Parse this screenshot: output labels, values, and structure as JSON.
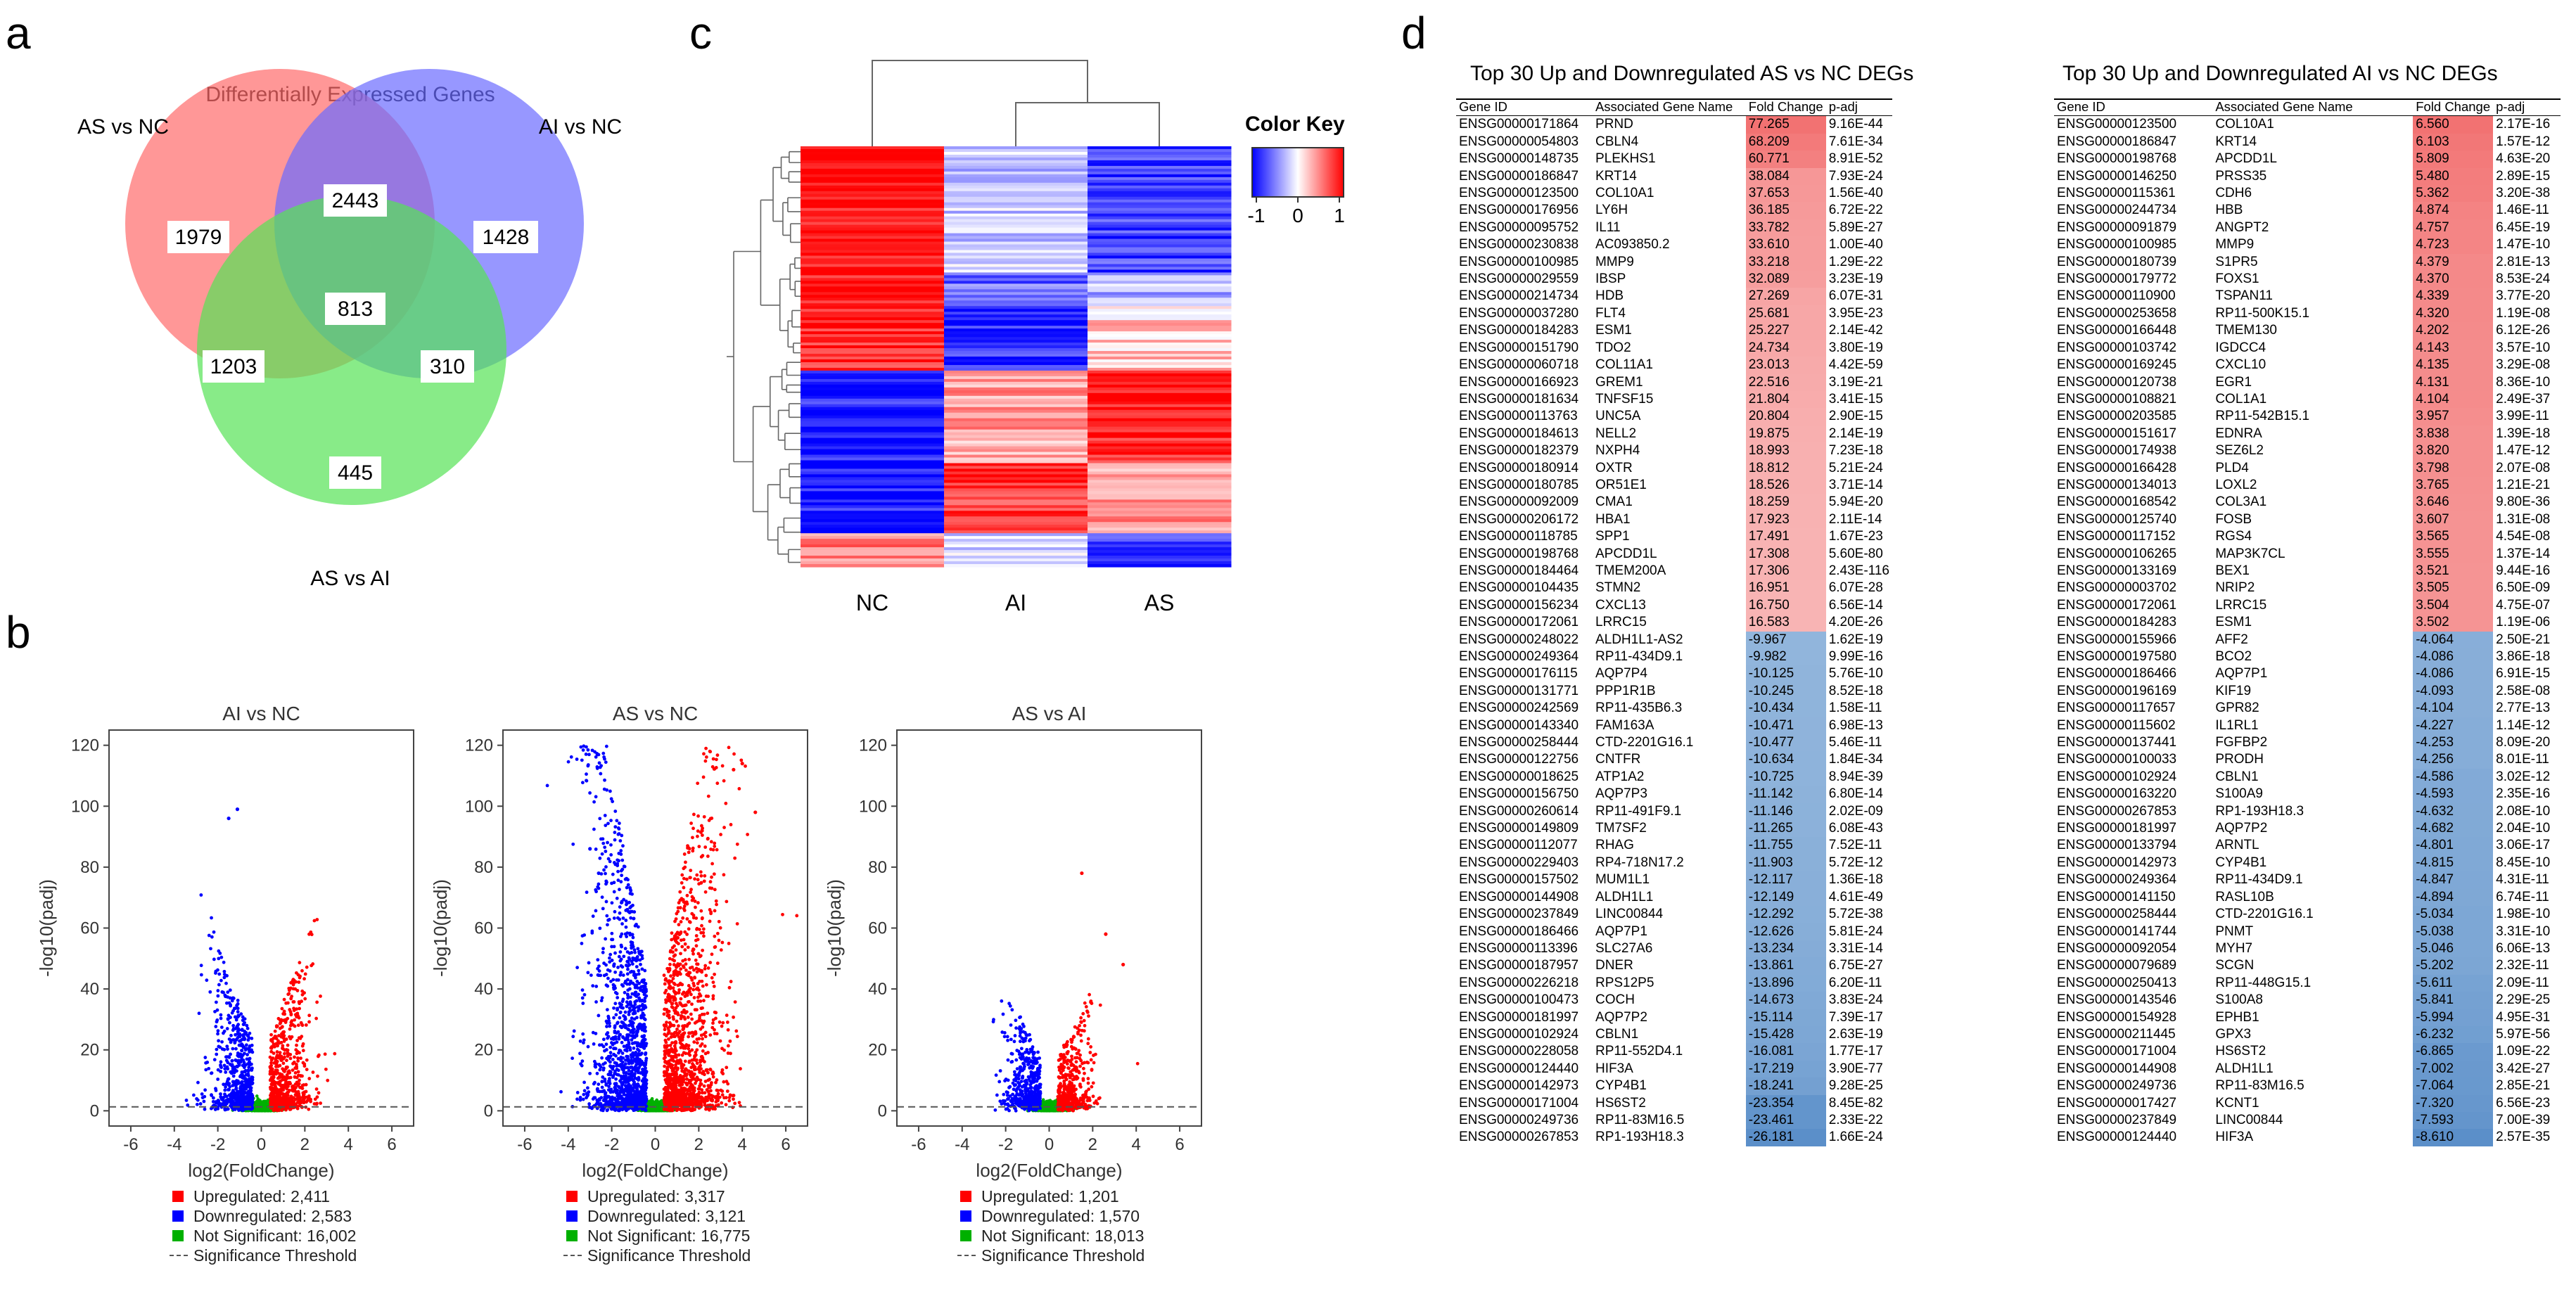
{
  "panels": {
    "a": "a",
    "b": "b",
    "c": "c",
    "d": "d"
  },
  "venn": {
    "title": "Differentially Expressed Genes",
    "sets": [
      {
        "label": "AS vs NC",
        "color": "#ff6b6b"
      },
      {
        "label": "AI vs NC",
        "color": "#6b6bff"
      },
      {
        "label": "AS vs AI",
        "color": "#55e255"
      }
    ],
    "regions": {
      "as_only": "1979",
      "ai_only": "1428",
      "asai_only": "445",
      "as_ai": "2443",
      "as_asai": "1203",
      "ai_asai": "310",
      "all": "813"
    }
  },
  "volcano": {
    "ylabel": "-log10(padj)",
    "xlabel": "log2(FoldChange)",
    "xticks": [
      "-6",
      "-4",
      "-2",
      "0",
      "2",
      "4",
      "6"
    ],
    "yticks": [
      "0",
      "20",
      "40",
      "60",
      "80",
      "100",
      "120"
    ],
    "xlim": [
      -7,
      7
    ],
    "ylim": [
      -5,
      125
    ],
    "colors": {
      "up": "#ff0000",
      "down": "#0000ff",
      "ns": "#00b000"
    },
    "plots": [
      {
        "title": "AI vs NC",
        "legend": [
          "Upregulated: 2,411",
          "Downregulated: 2,583",
          "Not Significant: 16,002",
          "Significance Threshold"
        ]
      },
      {
        "title": "AS vs NC",
        "legend": [
          "Upregulated: 3,317",
          "Downregulated: 3,121",
          "Not Significant: 16,775",
          "Significance Threshold"
        ]
      },
      {
        "title": "AS vs AI",
        "legend": [
          "Upregulated: 1,201",
          "Downregulated: 1,570",
          "Not Significant: 18,013",
          "Significance Threshold"
        ]
      }
    ]
  },
  "heatmap": {
    "columns": [
      "NC",
      "AI",
      "AS"
    ],
    "color_key_title": "Color Key",
    "color_key_ticks": [
      "-1",
      "0",
      "1"
    ],
    "colors": {
      "low": "#0000ff",
      "mid": "#ffffff",
      "high": "#ff0000"
    }
  },
  "tables": [
    {
      "title": "Top 30 Up and Downregulated AS vs NC DEGs",
      "headers": [
        "Gene ID",
        "Associated Gene Name",
        "Fold Change",
        "p-adj"
      ],
      "rows": [
        [
          "ENSG00000171864",
          "PRND",
          "77.265",
          "9.16E-44"
        ],
        [
          "ENSG00000054803",
          "CBLN4",
          "68.209",
          "7.61E-34"
        ],
        [
          "ENSG00000148735",
          "PLEKHS1",
          "60.771",
          "8.91E-52"
        ],
        [
          "ENSG00000186847",
          "KRT14",
          "38.084",
          "7.93E-24"
        ],
        [
          "ENSG00000123500",
          "COL10A1",
          "37.653",
          "1.56E-40"
        ],
        [
          "ENSG00000176956",
          "LY6H",
          "36.185",
          "6.72E-22"
        ],
        [
          "ENSG00000095752",
          "IL11",
          "33.782",
          "5.89E-27"
        ],
        [
          "ENSG00000230838",
          "AC093850.2",
          "33.610",
          "1.00E-40"
        ],
        [
          "ENSG00000100985",
          "MMP9",
          "33.218",
          "1.29E-22"
        ],
        [
          "ENSG00000029559",
          "IBSP",
          "32.089",
          "3.23E-19"
        ],
        [
          "ENSG00000214734",
          "HDB",
          "27.269",
          "6.07E-31"
        ],
        [
          "ENSG00000037280",
          "FLT4",
          "25.681",
          "3.95E-23"
        ],
        [
          "ENSG00000184283",
          "ESM1",
          "25.227",
          "2.14E-42"
        ],
        [
          "ENSG00000151790",
          "TDO2",
          "24.734",
          "3.80E-19"
        ],
        [
          "ENSG00000060718",
          "COL11A1",
          "23.013",
          "4.42E-59"
        ],
        [
          "ENSG00000166923",
          "GREM1",
          "22.516",
          "3.19E-21"
        ],
        [
          "ENSG00000181634",
          "TNFSF15",
          "21.804",
          "3.41E-15"
        ],
        [
          "ENSG00000113763",
          "UNC5A",
          "20.804",
          "2.90E-15"
        ],
        [
          "ENSG00000184613",
          "NELL2",
          "19.875",
          "2.14E-19"
        ],
        [
          "ENSG00000182379",
          "NXPH4",
          "18.993",
          "7.23E-18"
        ],
        [
          "ENSG00000180914",
          "OXTR",
          "18.812",
          "5.21E-24"
        ],
        [
          "ENSG00000180785",
          "OR51E1",
          "18.526",
          "3.71E-14"
        ],
        [
          "ENSG00000092009",
          "CMA1",
          "18.259",
          "5.94E-20"
        ],
        [
          "ENSG00000206172",
          "HBA1",
          "17.923",
          "2.11E-14"
        ],
        [
          "ENSG00000118785",
          "SPP1",
          "17.491",
          "1.67E-23"
        ],
        [
          "ENSG00000198768",
          "APCDD1L",
          "17.308",
          "5.60E-80"
        ],
        [
          "ENSG00000184464",
          "TMEM200A",
          "17.306",
          "2.43E-116"
        ],
        [
          "ENSG00000104435",
          "STMN2",
          "16.951",
          "6.07E-28"
        ],
        [
          "ENSG00000156234",
          "CXCL13",
          "16.750",
          "6.56E-14"
        ],
        [
          "ENSG00000172061",
          "LRRC15",
          "16.583",
          "4.20E-26"
        ],
        [
          "ENSG00000248022",
          "ALDH1L1-AS2",
          "-9.967",
          "1.62E-19"
        ],
        [
          "ENSG00000249364",
          "RP11-434D9.1",
          "-9.982",
          "9.99E-16"
        ],
        [
          "ENSG00000176115",
          "AQP7P4",
          "-10.125",
          "5.76E-10"
        ],
        [
          "ENSG00000131771",
          "PPP1R1B",
          "-10.245",
          "8.52E-18"
        ],
        [
          "ENSG00000242569",
          "RP11-435B6.3",
          "-10.434",
          "1.58E-11"
        ],
        [
          "ENSG00000143340",
          "FAM163A",
          "-10.471",
          "6.98E-13"
        ],
        [
          "ENSG00000258444",
          "CTD-2201G16.1",
          "-10.477",
          "5.46E-11"
        ],
        [
          "ENSG00000122756",
          "CNTFR",
          "-10.634",
          "1.84E-34"
        ],
        [
          "ENSG00000018625",
          "ATP1A2",
          "-10.725",
          "8.94E-39"
        ],
        [
          "ENSG00000156750",
          "AQP7P3",
          "-11.142",
          "6.80E-14"
        ],
        [
          "ENSG00000260614",
          "RP11-491F9.1",
          "-11.146",
          "2.02E-09"
        ],
        [
          "ENSG00000149809",
          "TM7SF2",
          "-11.265",
          "6.08E-43"
        ],
        [
          "ENSG00000112077",
          "RHAG",
          "-11.755",
          "7.52E-11"
        ],
        [
          "ENSG00000229403",
          "RP4-718N17.2",
          "-11.903",
          "5.72E-12"
        ],
        [
          "ENSG00000157502",
          "MUM1L1",
          "-12.117",
          "1.36E-18"
        ],
        [
          "ENSG00000144908",
          "ALDH1L1",
          "-12.149",
          "4.61E-49"
        ],
        [
          "ENSG00000237849",
          "LINC00844",
          "-12.292",
          "5.72E-38"
        ],
        [
          "ENSG00000186466",
          "AQP7P1",
          "-12.626",
          "5.81E-24"
        ],
        [
          "ENSG00000113396",
          "SLC27A6",
          "-13.234",
          "3.31E-14"
        ],
        [
          "ENSG00000187957",
          "DNER",
          "-13.861",
          "6.75E-27"
        ],
        [
          "ENSG00000226218",
          "RPS12P5",
          "-13.896",
          "6.20E-11"
        ],
        [
          "ENSG00000100473",
          "COCH",
          "-14.673",
          "3.83E-24"
        ],
        [
          "ENSG00000181997",
          "AQP7P2",
          "-15.114",
          "7.39E-17"
        ],
        [
          "ENSG00000102924",
          "CBLN1",
          "-15.428",
          "2.63E-19"
        ],
        [
          "ENSG00000228058",
          "RP11-552D4.1",
          "-16.081",
          "1.77E-17"
        ],
        [
          "ENSG00000124440",
          "HIF3A",
          "-17.219",
          "3.90E-77"
        ],
        [
          "ENSG00000142973",
          "CYP4B1",
          "-18.241",
          "9.28E-25"
        ],
        [
          "ENSG00000171004",
          "HS6ST2",
          "-23.354",
          "8.45E-82"
        ],
        [
          "ENSG00000249736",
          "RP11-83M16.5",
          "-23.461",
          "2.33E-22"
        ],
        [
          "ENSG00000267853",
          "RP1-193H18.3",
          "-26.181",
          "1.66E-24"
        ]
      ]
    },
    {
      "title": "Top 30 Up and Downregulated AI vs NC DEGs",
      "headers": [
        "Gene ID",
        "Associated Gene Name",
        "Fold Change",
        "p-adj"
      ],
      "rows": [
        [
          "ENSG00000123500",
          "COL10A1",
          "6.560",
          "2.17E-16"
        ],
        [
          "ENSG00000186847",
          "KRT14",
          "6.103",
          "1.57E-12"
        ],
        [
          "ENSG00000198768",
          "APCDD1L",
          "5.809",
          "4.63E-20"
        ],
        [
          "ENSG00000146250",
          "PRSS35",
          "5.480",
          "2.89E-15"
        ],
        [
          "ENSG00000115361",
          "CDH6",
          "5.362",
          "3.20E-38"
        ],
        [
          "ENSG00000244734",
          "HBB",
          "4.874",
          "1.46E-11"
        ],
        [
          "ENSG00000091879",
          "ANGPT2",
          "4.757",
          "6.45E-19"
        ],
        [
          "ENSG00000100985",
          "MMP9",
          "4.723",
          "1.47E-10"
        ],
        [
          "ENSG00000180739",
          "S1PR5",
          "4.379",
          "2.81E-13"
        ],
        [
          "ENSG00000179772",
          "FOXS1",
          "4.370",
          "8.53E-24"
        ],
        [
          "ENSG00000110900",
          "TSPAN11",
          "4.339",
          "3.77E-20"
        ],
        [
          "ENSG00000253658",
          "RP11-500K15.1",
          "4.320",
          "1.19E-08"
        ],
        [
          "ENSG00000166448",
          "TMEM130",
          "4.202",
          "6.12E-26"
        ],
        [
          "ENSG00000103742",
          "IGDCC4",
          "4.143",
          "3.57E-10"
        ],
        [
          "ENSG00000169245",
          "CXCL10",
          "4.135",
          "3.29E-08"
        ],
        [
          "ENSG00000120738",
          "EGR1",
          "4.131",
          "8.36E-10"
        ],
        [
          "ENSG00000108821",
          "COL1A1",
          "4.104",
          "2.49E-37"
        ],
        [
          "ENSG00000203585",
          "RP11-542B15.1",
          "3.957",
          "3.99E-11"
        ],
        [
          "ENSG00000151617",
          "EDNRA",
          "3.838",
          "1.39E-18"
        ],
        [
          "ENSG00000174938",
          "SEZ6L2",
          "3.820",
          "1.47E-12"
        ],
        [
          "ENSG00000166428",
          "PLD4",
          "3.798",
          "2.07E-08"
        ],
        [
          "ENSG00000134013",
          "LOXL2",
          "3.765",
          "1.21E-21"
        ],
        [
          "ENSG00000168542",
          "COL3A1",
          "3.646",
          "9.80E-36"
        ],
        [
          "ENSG00000125740",
          "FOSB",
          "3.607",
          "1.31E-08"
        ],
        [
          "ENSG00000117152",
          "RGS4",
          "3.565",
          "4.54E-08"
        ],
        [
          "ENSG00000106265",
          "MAP3K7CL",
          "3.555",
          "1.37E-14"
        ],
        [
          "ENSG00000133169",
          "BEX1",
          "3.521",
          "9.44E-16"
        ],
        [
          "ENSG00000003702",
          "NRIP2",
          "3.505",
          "6.50E-09"
        ],
        [
          "ENSG00000172061",
          "LRRC15",
          "3.504",
          "4.75E-07"
        ],
        [
          "ENSG00000184283",
          "ESM1",
          "3.502",
          "1.19E-06"
        ],
        [
          "ENSG00000155966",
          "AFF2",
          "-4.064",
          "2.50E-21"
        ],
        [
          "ENSG00000197580",
          "BCO2",
          "-4.086",
          "3.86E-18"
        ],
        [
          "ENSG00000186466",
          "AQP7P1",
          "-4.086",
          "6.91E-15"
        ],
        [
          "ENSG00000196169",
          "KIF19",
          "-4.093",
          "2.58E-08"
        ],
        [
          "ENSG00000117657",
          "GPR82",
          "-4.104",
          "2.77E-13"
        ],
        [
          "ENSG00000115602",
          "IL1RL1",
          "-4.227",
          "1.14E-12"
        ],
        [
          "ENSG00000137441",
          "FGFBP2",
          "-4.253",
          "8.09E-20"
        ],
        [
          "ENSG00000100033",
          "PRODH",
          "-4.256",
          "8.01E-11"
        ],
        [
          "ENSG00000102924",
          "CBLN1",
          "-4.586",
          "3.02E-12"
        ],
        [
          "ENSG00000163220",
          "S100A9",
          "-4.593",
          "2.35E-16"
        ],
        [
          "ENSG00000267853",
          "RP1-193H18.3",
          "-4.632",
          "2.08E-10"
        ],
        [
          "ENSG00000181997",
          "AQP7P2",
          "-4.682",
          "2.04E-10"
        ],
        [
          "ENSG00000133794",
          "ARNTL",
          "-4.801",
          "3.06E-17"
        ],
        [
          "ENSG00000142973",
          "CYP4B1",
          "-4.815",
          "8.45E-10"
        ],
        [
          "ENSG00000249364",
          "RP11-434D9.1",
          "-4.847",
          "4.31E-11"
        ],
        [
          "ENSG00000141150",
          "RASL10B",
          "-4.894",
          "6.74E-11"
        ],
        [
          "ENSG00000258444",
          "CTD-2201G16.1",
          "-5.034",
          "1.98E-10"
        ],
        [
          "ENSG00000141744",
          "PNMT",
          "-5.038",
          "3.31E-10"
        ],
        [
          "ENSG00000092054",
          "MYH7",
          "-5.046",
          "6.06E-13"
        ],
        [
          "ENSG00000079689",
          "SCGN",
          "-5.202",
          "2.32E-11"
        ],
        [
          "ENSG00000250413",
          "RP11-448G15.1",
          "-5.611",
          "2.09E-11"
        ],
        [
          "ENSG00000143546",
          "S100A8",
          "-5.841",
          "2.29E-25"
        ],
        [
          "ENSG00000154928",
          "EPHB1",
          "-5.994",
          "4.95E-31"
        ],
        [
          "ENSG00000211445",
          "GPX3",
          "-6.232",
          "5.97E-56"
        ],
        [
          "ENSG00000171004",
          "HS6ST2",
          "-6.865",
          "1.09E-22"
        ],
        [
          "ENSG00000144908",
          "ALDH1L1",
          "-7.002",
          "3.42E-27"
        ],
        [
          "ENSG00000249736",
          "RP11-83M16.5",
          "-7.064",
          "2.85E-21"
        ],
        [
          "ENSG00000017427",
          "KCNT1",
          "-7.320",
          "6.56E-23"
        ],
        [
          "ENSG00000237849",
          "LINC00844",
          "-7.593",
          "7.00E-39"
        ],
        [
          "ENSG00000124440",
          "HIF3A",
          "-8.610",
          "2.57E-35"
        ]
      ]
    }
  ]
}
